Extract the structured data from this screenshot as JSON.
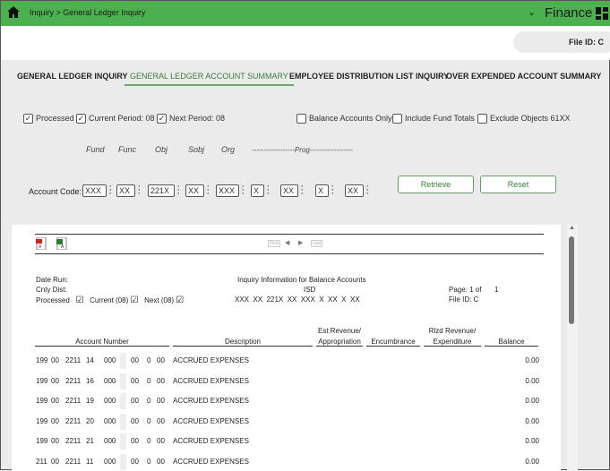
{
  "header": {
    "breadcrumb": "Inquiry > General Ledger Inquiry",
    "app": "Finance",
    "icons": [
      "home-icon",
      "chevron-down-icon",
      "grid-icon"
    ]
  },
  "file_id": "File ID: C",
  "tabs": [
    "GENERAL LEDGER INQUIRY",
    "GENERAL LEDGER ACCOUNT SUMMARY",
    "EMPLOYEE DISTRIBUTION LIST INQUIRY",
    "OVER EXPENDED ACCOUNT SUMMARY"
  ],
  "active_tab": 1,
  "options": [
    {
      "label": "Processed",
      "checked": true
    },
    {
      "label": "Current Period: 08",
      "checked": true
    },
    {
      "label": "Next Period: 08",
      "checked": true
    },
    {
      "label": "Balance Accounts Only",
      "checked": false
    },
    {
      "label": "Include Fund Totals",
      "checked": false
    },
    {
      "label": "Exclude Objects 61XX",
      "checked": false
    }
  ],
  "account_code": {
    "label": "Account Code:",
    "field_labels": [
      "Fund",
      "Func",
      "Obj",
      "Sobj",
      "Org",
      "------------------Prog------------------"
    ],
    "values": [
      "XXX",
      "XX",
      "221X",
      "XX",
      "XXX",
      "X",
      "XX",
      "X",
      "XX"
    ]
  },
  "buttons": {
    "retrieve": "Retrieve",
    "reset": "Reset"
  },
  "report": {
    "nav": [
      "First",
      "Last"
    ],
    "date_run": "Date Run:",
    "cnty_dist": "Cnty Dist:",
    "processed": "Processed",
    "current": "Current",
    "current_p": "(08)",
    "next": "Next",
    "next_p": "(08)",
    "check": "☑",
    "title": "Inquiry Information for Balance Accounts",
    "isd": "ISD",
    "code": "XXX  XX  221X  XX  XXX  X  XX  X  XX",
    "page_label": "Page: 1 of",
    "page_total": "1",
    "file_id": "File ID: C",
    "columns": [
      [
        "",
        "Account Number"
      ],
      [
        "",
        "Description"
      ],
      [
        "Est Revenue/",
        "Appropriation"
      ],
      [
        "",
        "Encumbrance"
      ],
      [
        "Rlzd Revenue/",
        "Expenditure"
      ],
      [
        "",
        "Balance"
      ]
    ],
    "rows": [
      {
        "acct": [
          "199",
          "00",
          "2211",
          "14",
          "000",
          "00",
          "0",
          "00"
        ],
        "desc": "ACCRUED EXPENSES",
        "balance": "0.00"
      },
      {
        "acct": [
          "199",
          "00",
          "2211",
          "16",
          "000",
          "00",
          "0",
          "00"
        ],
        "desc": "ACCRUED EXPENSES",
        "balance": "0.00"
      },
      {
        "acct": [
          "199",
          "00",
          "2211",
          "19",
          "000",
          "00",
          "0",
          "00"
        ],
        "desc": "ACCRUED EXPENSES",
        "balance": "0.00"
      },
      {
        "acct": [
          "199",
          "00",
          "2211",
          "20",
          "000",
          "00",
          "0",
          "00"
        ],
        "desc": "ACCRUED EXPENSES",
        "balance": "0.00"
      },
      {
        "acct": [
          "199",
          "00",
          "2211",
          "21",
          "000",
          "00",
          "0",
          "00"
        ],
        "desc": "ACCRUED EXPENSES",
        "balance": "0.00"
      },
      {
        "acct": [
          "211",
          "00",
          "2211",
          "11",
          "000",
          "00",
          "0",
          "00"
        ],
        "desc": "ACCRUED EXPENSES",
        "balance": "0.00"
      }
    ]
  }
}
